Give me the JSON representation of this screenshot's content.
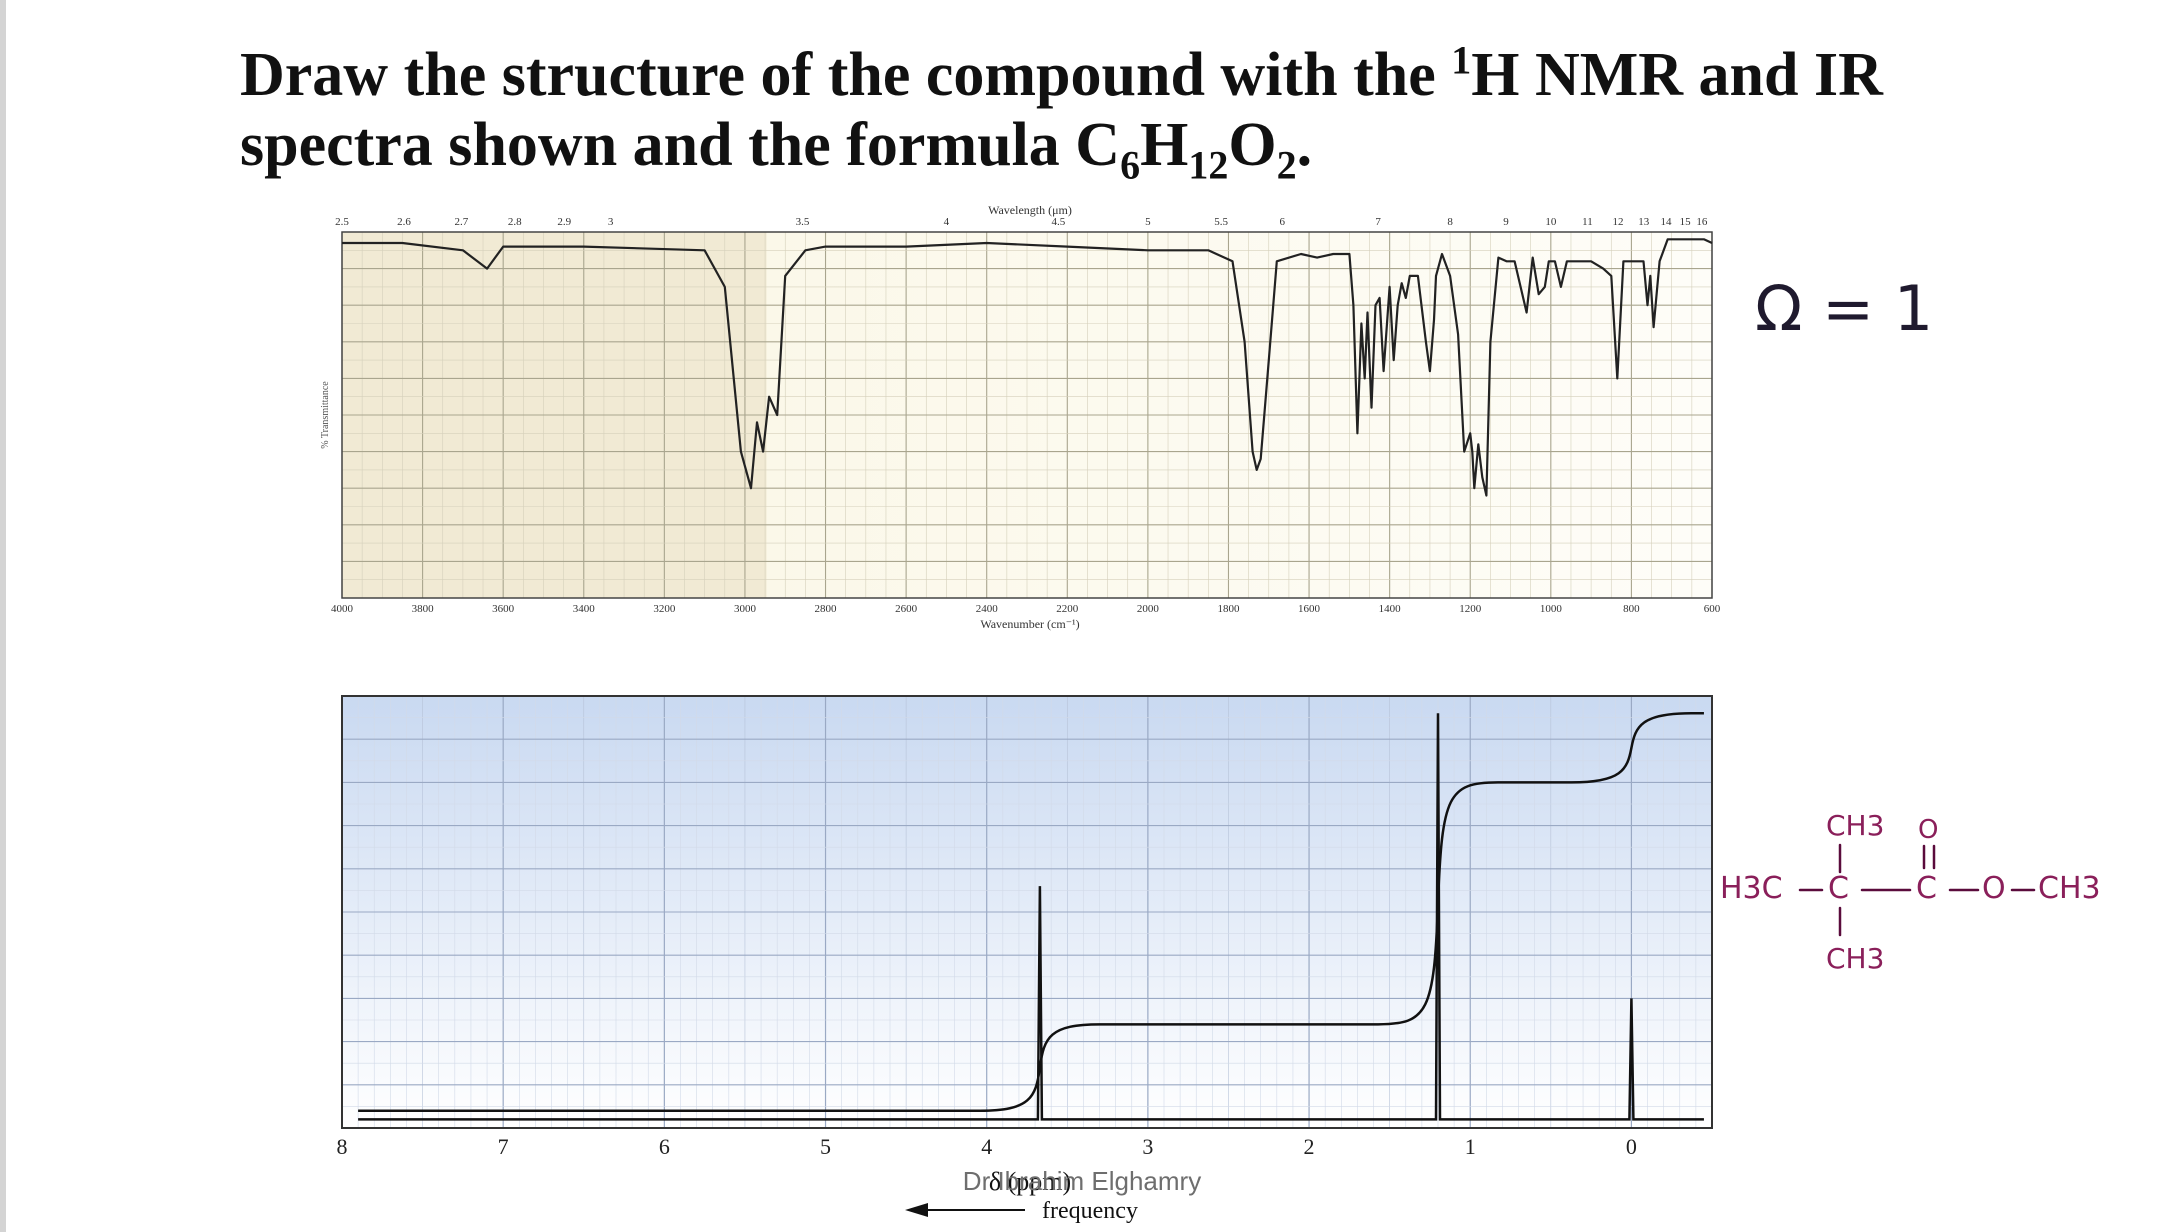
{
  "question": {
    "line1_pre": "Draw the structure of the compound with the ",
    "sup": "1",
    "line1_post": "H NMR and IR",
    "line2_pre": "spectra shown and the formula C",
    "sub1": "6",
    "h": "H",
    "sub2": "12",
    "o": "O",
    "sub3": "2",
    "end": "."
  },
  "annotations": {
    "omega_note": "Ω = 1",
    "structure": {
      "top_ch3": "CH3",
      "bottom_ch3": "CH3",
      "h3c": "H3C",
      "c_central": "C",
      "c_carbonyl": "C",
      "o_double": "O",
      "o_ester": "O",
      "ch3_right": "CH3"
    }
  },
  "watermark": "Dr Ibrahim Elghamry",
  "chart_data": [
    {
      "type": "line",
      "name": "IR spectrum",
      "title": "Wavelength (μm)",
      "xlabel": "Wavenumber (cm⁻¹)",
      "ylabel": "% Transmittance",
      "xlim": [
        4000,
        600
      ],
      "ylim": [
        0,
        100
      ],
      "x_ticks_bottom": [
        "4000",
        "3800",
        "3600",
        "3400",
        "3200",
        "3000",
        "2800",
        "2600",
        "2400",
        "2200",
        "2000",
        "1800",
        "1600",
        "1400",
        "1200",
        "1000",
        "800",
        "600"
      ],
      "x_ticks_top": [
        "2.5",
        "2.6",
        "2.7",
        "2.8",
        "2.9",
        "3",
        "3.5",
        "4",
        "4.5",
        "5",
        "5.5",
        "6",
        "7",
        "8",
        "9",
        "10",
        "11",
        "12",
        "13",
        "14",
        "15",
        "16"
      ],
      "grid": true,
      "series": [
        {
          "x": [
            4000,
            3850,
            3700,
            3640,
            3600,
            3400,
            3100,
            3050,
            3010,
            2985,
            2970,
            2955,
            2940,
            2920,
            2900,
            2850,
            2800,
            2600,
            2400,
            2200,
            2000,
            1850,
            1790,
            1760,
            1740,
            1730,
            1720,
            1700,
            1680,
            1620,
            1580,
            1540,
            1500,
            1490,
            1480,
            1470,
            1462,
            1455,
            1445,
            1435,
            1425,
            1415,
            1400,
            1390,
            1380,
            1370,
            1360,
            1350,
            1330,
            1310,
            1300,
            1290,
            1285,
            1270,
            1250,
            1230,
            1215,
            1200,
            1195,
            1190,
            1180,
            1170,
            1160,
            1150,
            1130,
            1110,
            1090,
            1060,
            1045,
            1030,
            1015,
            1005,
            990,
            975,
            960,
            940,
            900,
            870,
            850,
            835,
            820,
            790,
            770,
            760,
            753,
            745,
            730,
            710,
            680,
            620,
            600
          ],
          "y": [
            97,
            97,
            95,
            90,
            96,
            96,
            95,
            85,
            40,
            30,
            48,
            40,
            55,
            50,
            88,
            95,
            96,
            96,
            97,
            96,
            95,
            95,
            92,
            70,
            40,
            35,
            38,
            65,
            92,
            94,
            93,
            94,
            94,
            80,
            45,
            75,
            60,
            78,
            52,
            80,
            82,
            62,
            85,
            65,
            80,
            86,
            82,
            88,
            88,
            70,
            62,
            76,
            88,
            94,
            88,
            72,
            40,
            45,
            40,
            30,
            42,
            33,
            28,
            70,
            93,
            92,
            92,
            78,
            93,
            83,
            85,
            92,
            92,
            85,
            92,
            92,
            92,
            90,
            88,
            60,
            92,
            92,
            92,
            80,
            88,
            74,
            92,
            98,
            98,
            98,
            97
          ]
        }
      ]
    },
    {
      "type": "line",
      "name": "1H NMR spectrum",
      "xlabel": "δ (ppm)",
      "xlabel2": "frequency",
      "xlim": [
        8,
        -0.5
      ],
      "ylim": [
        0,
        100
      ],
      "x_ticks": [
        "8",
        "7",
        "6",
        "5",
        "4",
        "3",
        "2",
        "1",
        "0"
      ],
      "grid": true,
      "peaks": [
        {
          "delta": 3.67,
          "height": 56
        },
        {
          "delta": 1.2,
          "height": 96
        },
        {
          "delta": 0.0,
          "height": 30
        }
      ],
      "integration_steps": [
        {
          "delta": 3.67,
          "from": 4,
          "to": 24
        },
        {
          "delta": 1.2,
          "from": 24,
          "to": 80
        },
        {
          "delta": 0.0,
          "from": 80,
          "to": 96
        }
      ]
    }
  ]
}
